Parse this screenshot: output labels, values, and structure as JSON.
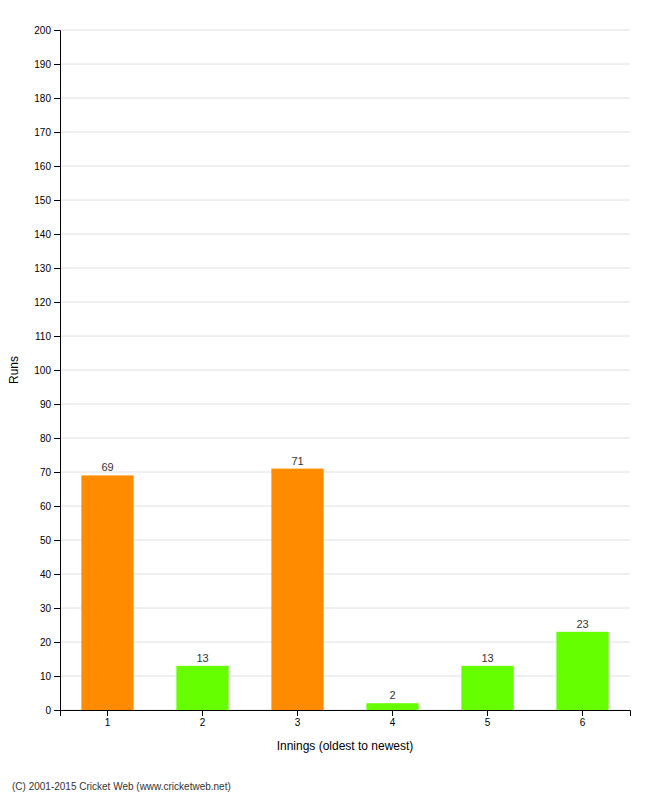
{
  "chart_data": {
    "type": "bar",
    "categories": [
      "1",
      "2",
      "3",
      "4",
      "5",
      "6"
    ],
    "values": [
      69,
      13,
      71,
      2,
      13,
      23
    ],
    "colors": [
      "#FF8C00",
      "#66FF00",
      "#FF8C00",
      "#66FF00",
      "#66FF00",
      "#66FF00"
    ],
    "xlabel": "Innings (oldest to newest)",
    "ylabel": "Runs",
    "ylim": [
      0,
      200
    ],
    "yticks": [
      0,
      10,
      20,
      30,
      40,
      50,
      60,
      70,
      80,
      90,
      100,
      110,
      120,
      130,
      140,
      150,
      160,
      170,
      180,
      190,
      200
    ],
    "grid": true,
    "data_labels": true,
    "annotations": [
      "(C) 2001-2015 Cricket Web (www.cricketweb.net)"
    ]
  }
}
